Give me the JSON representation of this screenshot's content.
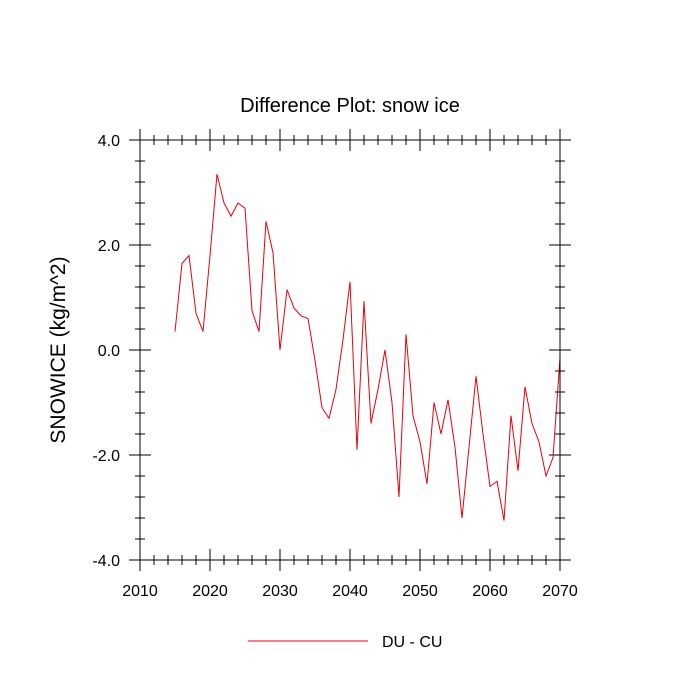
{
  "chart_data": {
    "type": "line",
    "title": "Difference Plot: snow ice",
    "xlabel": "",
    "ylabel": "SNOWICE  (kg/m^2)",
    "xlim": [
      2010,
      2070
    ],
    "ylim": [
      -4.0,
      4.0
    ],
    "x_ticks": [
      2010,
      2020,
      2030,
      2040,
      2050,
      2060,
      2070
    ],
    "x_tick_labels": [
      "2010",
      "2020",
      "2030",
      "2040",
      "2050",
      "2060",
      "2070"
    ],
    "y_ticks": [
      -4.0,
      -2.0,
      0.0,
      2.0,
      4.0
    ],
    "y_tick_labels": [
      "-4.0",
      "-2.0",
      "0.0",
      "2.0",
      "4.0"
    ],
    "grid": false,
    "legend_position": "bottom-center",
    "series": [
      {
        "name": "DU - CU",
        "color": "#e8000b",
        "x": [
          2015,
          2016,
          2017,
          2018,
          2019,
          2020,
          2021,
          2022,
          2023,
          2024,
          2025,
          2026,
          2027,
          2028,
          2029,
          2030,
          2031,
          2032,
          2033,
          2034,
          2035,
          2036,
          2037,
          2038,
          2039,
          2040,
          2041,
          2042,
          2043,
          2044,
          2045,
          2046,
          2047,
          2048,
          2049,
          2050,
          2051,
          2052,
          2053,
          2054,
          2055,
          2056,
          2057,
          2058,
          2059,
          2060,
          2061,
          2062,
          2063,
          2064,
          2065,
          2066,
          2067,
          2068,
          2069,
          2070
        ],
        "values": [
          0.35,
          1.65,
          1.8,
          0.7,
          0.35,
          1.8,
          3.35,
          2.8,
          2.55,
          2.8,
          2.7,
          0.75,
          0.35,
          2.45,
          1.85,
          0.0,
          1.15,
          0.8,
          0.65,
          0.6,
          -0.2,
          -1.1,
          -1.3,
          -0.75,
          0.2,
          1.3,
          -1.9,
          0.93,
          -1.4,
          -0.75,
          0.0,
          -1.0,
          -2.8,
          0.3,
          -1.25,
          -1.75,
          -2.55,
          -1.0,
          -1.6,
          -0.95,
          -1.85,
          -3.2,
          -1.85,
          -0.5,
          -1.6,
          -2.6,
          -2.5,
          -3.25,
          -1.25,
          -2.3,
          -0.7,
          -1.4,
          -1.75,
          -2.4,
          -2.05,
          -0.15
        ]
      }
    ]
  }
}
